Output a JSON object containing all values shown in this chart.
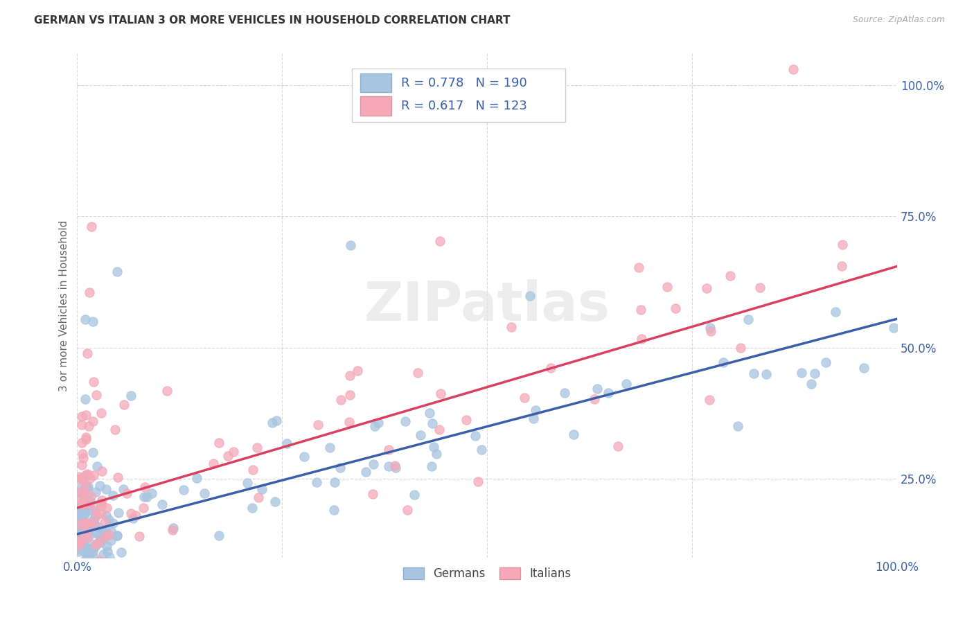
{
  "title": "GERMAN VS ITALIAN 3 OR MORE VEHICLES IN HOUSEHOLD CORRELATION CHART",
  "source": "Source: ZipAtlas.com",
  "ylabel": "3 or more Vehicles in Household",
  "german_R": "0.778",
  "german_N": "190",
  "italian_R": "0.617",
  "italian_N": "123",
  "german_color": "#a8c4e0",
  "italian_color": "#f4a8b8",
  "german_line_color": "#3a5fa8",
  "italian_line_color": "#d94060",
  "legend_german_label": "Germans",
  "legend_italian_label": "Italians",
  "watermark": "ZIPatlas",
  "background_color": "#ffffff",
  "grid_color": "#d8d8d8",
  "title_color": "#333333",
  "axis_label_color": "#666666",
  "tick_label_color": "#3a5fa8",
  "legend_R_N_color": "#3a5fa8",
  "xmin": 0.0,
  "xmax": 1.0,
  "ymin": 0.1,
  "ymax": 1.06,
  "german_line_x0": 0.0,
  "german_line_y0": 0.145,
  "german_line_x1": 1.0,
  "german_line_y1": 0.555,
  "italian_line_x0": 0.0,
  "italian_line_y0": 0.195,
  "italian_line_x1": 1.0,
  "italian_line_y1": 0.655
}
